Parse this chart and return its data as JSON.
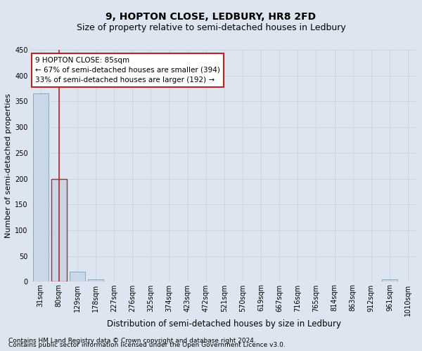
{
  "title": "9, HOPTON CLOSE, LEDBURY, HR8 2FD",
  "subtitle": "Size of property relative to semi-detached houses in Ledbury",
  "xlabel": "Distribution of semi-detached houses by size in Ledbury",
  "ylabel": "Number of semi-detached properties",
  "footnote1": "Contains HM Land Registry data © Crown copyright and database right 2024.",
  "footnote2": "Contains public sector information licensed under the Open Government Licence v3.0.",
  "annotation_line1": "9 HOPTON CLOSE: 85sqm",
  "annotation_line2": "← 67% of semi-detached houses are smaller (394)",
  "annotation_line3": "33% of semi-detached houses are larger (192) →",
  "categories": [
    "31sqm",
    "80sqm",
    "129sqm",
    "178sqm",
    "227sqm",
    "276sqm",
    "325sqm",
    "374sqm",
    "423sqm",
    "472sqm",
    "521sqm",
    "570sqm",
    "619sqm",
    "667sqm",
    "716sqm",
    "765sqm",
    "814sqm",
    "863sqm",
    "912sqm",
    "961sqm",
    "1010sqm"
  ],
  "values": [
    365,
    200,
    20,
    5,
    0,
    0,
    0,
    0,
    0,
    0,
    0,
    0,
    0,
    0,
    0,
    0,
    0,
    0,
    0,
    5,
    0
  ],
  "bar_color": "#c8d8e8",
  "bar_edge_color": "#7aa0b8",
  "highlight_bar_index": 1,
  "highlight_bar_color": "#c8d8e8",
  "highlight_bar_edge_color": "#bb2222",
  "vline_x": 1,
  "vline_color": "#bb2222",
  "annotation_box_facecolor": "#ffffff",
  "annotation_box_edgecolor": "#bb2222",
  "grid_color": "#c8d4e4",
  "background_color": "#dde6f0",
  "ylim": [
    0,
    450
  ],
  "title_fontsize": 10,
  "subtitle_fontsize": 9,
  "xlabel_fontsize": 8.5,
  "ylabel_fontsize": 8,
  "tick_fontsize": 7,
  "annotation_fontsize": 7.5,
  "footnote_fontsize": 6.5
}
